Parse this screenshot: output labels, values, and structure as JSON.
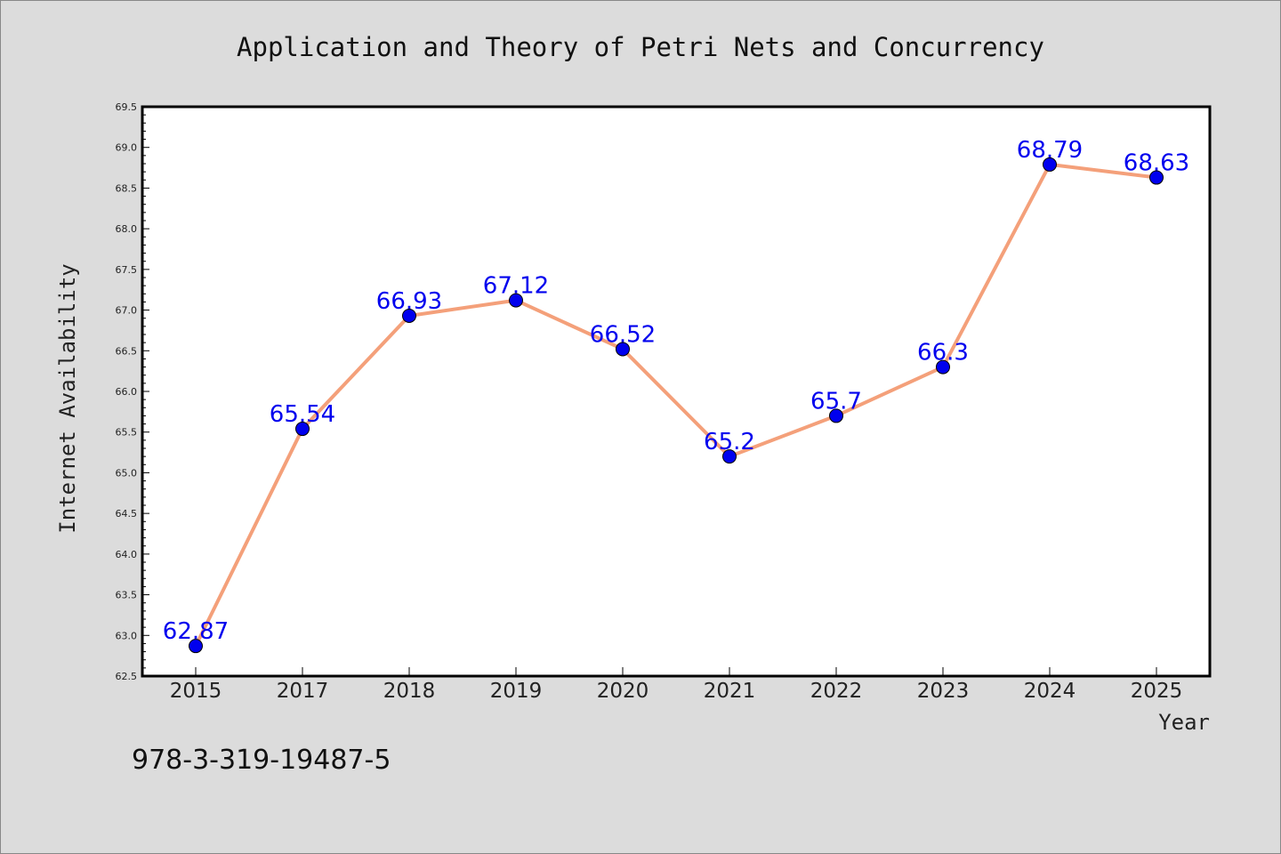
{
  "chart_data": {
    "type": "line",
    "title": "Application and Theory of Petri Nets and Concurrency",
    "xlabel": "Year",
    "ylabel": "Internet Availability",
    "categories": [
      "2015",
      "2017",
      "2018",
      "2019",
      "2020",
      "2021",
      "2022",
      "2023",
      "2024",
      "2025"
    ],
    "series": [
      {
        "values": [
          62.87,
          65.54,
          66.93,
          67.12,
          66.52,
          65.2,
          65.7,
          66.3,
          68.79,
          68.63
        ],
        "labels": [
          "62.87",
          "65.54",
          "66.93",
          "67.12",
          "66.52",
          "65.2",
          "65.7",
          "66.3",
          "68.79",
          "68.63"
        ]
      }
    ],
    "ylim": [
      62.5,
      69.5
    ],
    "yticks": [
      "62.5",
      "63.0",
      "63.5",
      "64.0",
      "64.5",
      "65.0",
      "65.5",
      "66.0",
      "66.5",
      "67.0",
      "67.5",
      "68.0",
      "68.5",
      "69.0",
      "69.5"
    ],
    "grid": false,
    "line_color": "#f4a07a",
    "marker_color": "#0000ee",
    "label_color": "#0000ee",
    "background": "#dcdcdc",
    "plot_background": "#ffffff"
  },
  "footer": {
    "text": "978-3-319-19487-5"
  }
}
